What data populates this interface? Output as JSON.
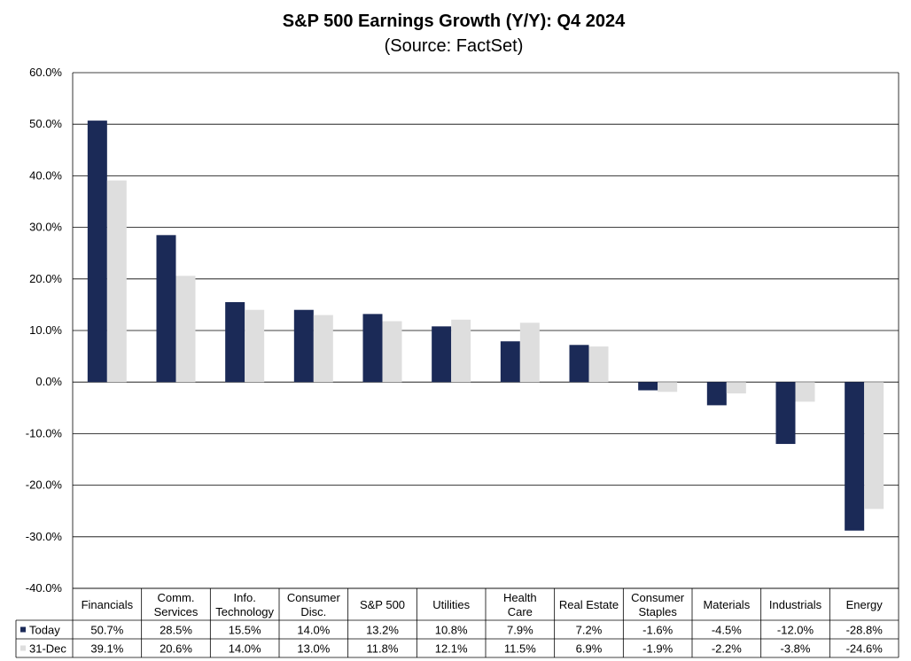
{
  "chart_data": {
    "type": "bar",
    "title": "S&P 500 Earnings Growth (Y/Y): Q4 2024",
    "subtitle": "(Source: FactSet)",
    "categories": [
      [
        "Financials"
      ],
      [
        "Comm.",
        "Services"
      ],
      [
        "Info.",
        "Technology"
      ],
      [
        "Consumer",
        "Disc."
      ],
      [
        "S&P 500"
      ],
      [
        "Utilities"
      ],
      [
        "Health",
        "Care"
      ],
      [
        "Real Estate"
      ],
      [
        "Consumer",
        "Staples"
      ],
      [
        "Materials"
      ],
      [
        "Industrials"
      ],
      [
        "Energy"
      ]
    ],
    "series": [
      {
        "name": "Today",
        "color": "#1b2a57",
        "values": [
          50.7,
          28.5,
          15.5,
          14.0,
          13.2,
          10.8,
          7.9,
          7.2,
          -1.6,
          -4.5,
          -12.0,
          -28.8
        ],
        "labels": [
          "50.7%",
          "28.5%",
          "15.5%",
          "14.0%",
          "13.2%",
          "10.8%",
          "7.9%",
          "7.2%",
          "-1.6%",
          "-4.5%",
          "-12.0%",
          "-28.8%"
        ]
      },
      {
        "name": "31-Dec",
        "color": "#dedede",
        "values": [
          39.1,
          20.6,
          14.0,
          13.0,
          11.8,
          12.1,
          11.5,
          6.9,
          -1.9,
          -2.2,
          -3.8,
          -24.6
        ],
        "labels": [
          "39.1%",
          "20.6%",
          "14.0%",
          "13.0%",
          "11.8%",
          "12.1%",
          "11.5%",
          "6.9%",
          "-1.9%",
          "-2.2%",
          "-3.8%",
          "-24.6%"
        ]
      }
    ],
    "ylim": [
      -40,
      60
    ],
    "ytick_labels": [
      "60.0%",
      "50.0%",
      "40.0%",
      "30.0%",
      "20.0%",
      "10.0%",
      "0.0%",
      "-10.0%",
      "-20.0%",
      "-30.0%",
      "-40.0%"
    ],
    "grid": true,
    "legend": "data-table-below",
    "xlabel": "",
    "ylabel": ""
  }
}
